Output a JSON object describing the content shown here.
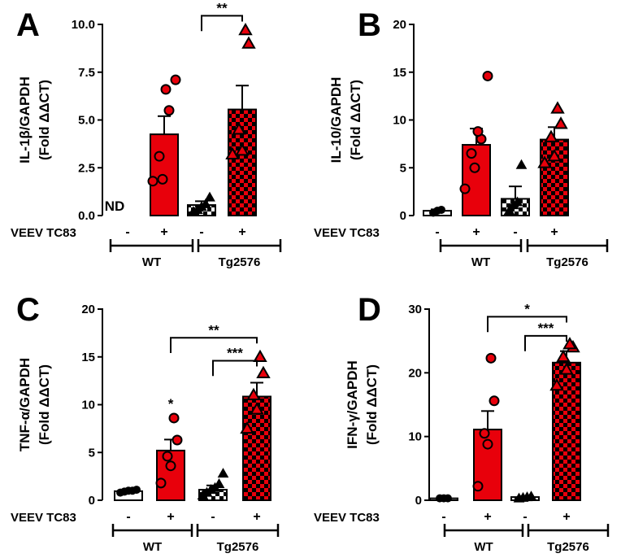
{
  "chart_data": [
    {
      "type": "bar",
      "panel": "A",
      "ylabel_line1": "IL-1β/GAPDH",
      "ylabel_line2": "(Fold ΔΔCT)",
      "ylim": [
        0,
        10
      ],
      "yticks": [
        "0.0",
        "2.5",
        "5.0",
        "7.5",
        "10.0"
      ],
      "ytick_values": [
        0,
        2.5,
        5,
        7.5,
        10
      ],
      "condition_label": "VEEV TC83",
      "treatment_signs": [
        "-",
        "+",
        "-",
        "+"
      ],
      "groups": [
        "WT",
        "Tg2576"
      ],
      "categories": [
        "WT -",
        "WT +",
        "Tg2576 -",
        "Tg2576 +"
      ],
      "values": [
        null,
        4.25,
        0.55,
        5.55
      ],
      "errors": [
        null,
        0.95,
        0.2,
        1.25
      ],
      "points": [
        [],
        [
          1.8,
          1.9,
          3.1,
          5.5,
          6.6,
          7.1
        ],
        [
          0.2,
          0.3,
          0.45,
          0.6,
          0.95
        ],
        [
          3.2,
          3.4,
          4.5,
          9.0,
          9.7
        ]
      ],
      "annotations": [
        {
          "text": "ND",
          "bar": 0
        }
      ],
      "significance": [
        {
          "from": 2,
          "to": 3,
          "text": "**",
          "y": 10.45
        }
      ]
    },
    {
      "type": "bar",
      "panel": "B",
      "ylabel_line1": "IL-10/GAPDH",
      "ylabel_line2": "(Fold ΔΔCT)",
      "ylim": [
        0,
        20
      ],
      "yticks": [
        "0",
        "5",
        "10",
        "15",
        "20"
      ],
      "ytick_values": [
        0,
        5,
        10,
        15,
        20
      ],
      "condition_label": "VEEV TC83",
      "treatment_signs": [
        "-",
        "+",
        "-",
        "+"
      ],
      "groups": [
        "WT",
        "Tg2576"
      ],
      "categories": [
        "WT -",
        "WT +",
        "Tg2576 -",
        "Tg2576 +"
      ],
      "values": [
        0.5,
        7.4,
        1.75,
        7.95
      ],
      "errors": [
        0.15,
        1.7,
        1.3,
        1.3
      ],
      "points": [
        [
          0.3,
          0.5,
          0.6
        ],
        [
          2.8,
          5.0,
          6.5,
          8.0,
          8.8,
          14.6
        ],
        [
          0.5,
          1.1,
          1.4,
          5.3
        ],
        [
          5.5,
          6.2,
          8.2,
          9.6,
          11.2
        ]
      ],
      "annotations": [],
      "significance": []
    },
    {
      "type": "bar",
      "panel": "C",
      "ylabel_line1": "TNF-α/GAPDH",
      "ylabel_line2": "(Fold ΔΔCT)",
      "ylim": [
        0,
        20
      ],
      "yticks": [
        "0",
        "5",
        "10",
        "15",
        "20"
      ],
      "ytick_values": [
        0,
        5,
        10,
        15,
        20
      ],
      "condition_label": "VEEV TC83",
      "treatment_signs": [
        "-",
        "+",
        "-",
        "+"
      ],
      "groups": [
        "WT",
        "Tg2576"
      ],
      "categories": [
        "WT -",
        "WT +",
        "Tg2576 -",
        "Tg2576 +"
      ],
      "values": [
        0.95,
        5.2,
        1.1,
        10.85
      ],
      "errors": [
        0.15,
        1.15,
        0.45,
        1.45
      ],
      "points": [
        [
          0.8,
          0.9,
          1.0,
          1.0,
          1.1
        ],
        [
          1.8,
          3.6,
          4.6,
          6.3,
          8.6
        ],
        [
          0.5,
          0.8,
          1.1,
          1.3,
          1.7,
          2.8
        ],
        [
          7.5,
          9.5,
          11.0,
          13.3,
          15.0
        ]
      ],
      "annotations": [
        {
          "text": "*",
          "bar": 1
        }
      ],
      "significance": [
        {
          "from": 1,
          "to": 3,
          "text": "**",
          "y": 17.0
        },
        {
          "from": 2,
          "to": 3,
          "text": "***",
          "y": 14.6
        }
      ]
    },
    {
      "type": "bar",
      "panel": "D",
      "ylabel_line1": "IFN-γ/GAPDH",
      "ylabel_line2": "(Fold ΔΔCT)",
      "ylim": [
        0,
        30
      ],
      "yticks": [
        "0",
        "10",
        "20",
        "30"
      ],
      "ytick_values": [
        0,
        10,
        20,
        30
      ],
      "condition_label": "VEEV TC83",
      "treatment_signs": [
        "-",
        "+",
        "-",
        "+"
      ],
      "groups": [
        "WT",
        "Tg2576"
      ],
      "categories": [
        "WT -",
        "WT +",
        "Tg2576 -",
        "Tg2576 +"
      ],
      "values": [
        0.3,
        11.1,
        0.5,
        21.6
      ],
      "errors": [
        0.1,
        2.9,
        0.15,
        1.8
      ],
      "points": [
        [
          0.3,
          0.3,
          0.3
        ],
        [
          2.2,
          8.8,
          10.5,
          15.6,
          22.3
        ],
        [
          0.3,
          0.4,
          0.5,
          0.6
        ],
        [
          18.0,
          20.5,
          22.5,
          24.0,
          24.5
        ]
      ],
      "annotations": [],
      "significance": [
        {
          "from": 1,
          "to": 3,
          "text": "*",
          "y": 28.8
        },
        {
          "from": 2,
          "to": 3,
          "text": "***",
          "y": 25.8
        }
      ]
    }
  ],
  "colors": {
    "red": "#e8000b",
    "white": "#ffffff",
    "black": "#000000",
    "check_dark": "#000000",
    "check_red": "#e8000b"
  }
}
